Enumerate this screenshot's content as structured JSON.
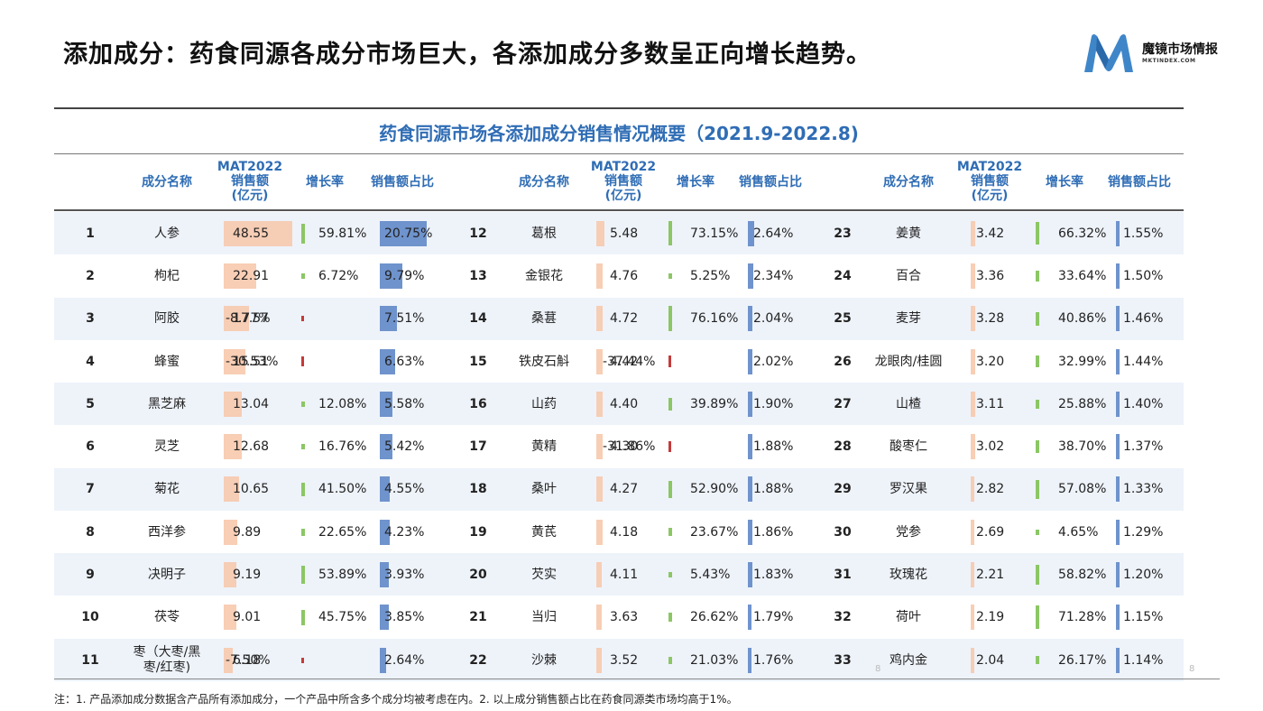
{
  "page_title": "添加成分：药食同源各成分市场巨大，各添加成分多数呈正向增长趋势。",
  "logo": {
    "brand": "魔镜市场情报",
    "sub": "MKTINDEX.COM"
  },
  "table_title": "药食同源市场各添加成分销售情况概要（2021.9-2022.8)",
  "headers": {
    "name": "成分名称",
    "sales_line1": "MAT2022",
    "sales_line2": "销售额",
    "sales_line3": "(亿元)",
    "growth": "增长率",
    "share": "销售额占比"
  },
  "colors": {
    "sales_bar": "#f7c6a8",
    "growth_pos": "#8cc665",
    "growth_neg": "#c43a3a",
    "share_bar": "#6f93cc",
    "header_text": "#2f6db5"
  },
  "groups": [
    {
      "rows": [
        {
          "rank": "1",
          "name": "人参",
          "sales": "48.55",
          "growth": "59.81%",
          "share": "20.75%",
          "sales_num": 48.55,
          "growth_num": 59.81,
          "share_num": 20.75
        },
        {
          "rank": "2",
          "name": "枸杞",
          "sales": "22.91",
          "growth": "6.72%",
          "share": "9.79%",
          "sales_num": 22.91,
          "growth_num": 6.72,
          "share_num": 9.79
        },
        {
          "rank": "3",
          "name": "阿胶",
          "sales": "17.57",
          "growth": "-8.77%",
          "share": "7.51%",
          "sales_num": 17.57,
          "growth_num": -8.77,
          "share_num": 7.51
        },
        {
          "rank": "4",
          "name": "蜂蜜",
          "sales": "15.51",
          "growth": "-30.53%",
          "share": "6.63%",
          "sales_num": 15.51,
          "growth_num": -30.53,
          "share_num": 6.63
        },
        {
          "rank": "5",
          "name": "黑芝麻",
          "sales": "13.04",
          "growth": "12.08%",
          "share": "5.58%",
          "sales_num": 13.04,
          "growth_num": 12.08,
          "share_num": 5.58
        },
        {
          "rank": "6",
          "name": "灵芝",
          "sales": "12.68",
          "growth": "16.76%",
          "share": "5.42%",
          "sales_num": 12.68,
          "growth_num": 16.76,
          "share_num": 5.42
        },
        {
          "rank": "7",
          "name": "菊花",
          "sales": "10.65",
          "growth": "41.50%",
          "share": "4.55%",
          "sales_num": 10.65,
          "growth_num": 41.5,
          "share_num": 4.55
        },
        {
          "rank": "8",
          "name": "西洋参",
          "sales": "9.89",
          "growth": "22.65%",
          "share": "4.23%",
          "sales_num": 9.89,
          "growth_num": 22.65,
          "share_num": 4.23
        },
        {
          "rank": "9",
          "name": "决明子",
          "sales": "9.19",
          "growth": "53.89%",
          "share": "3.93%",
          "sales_num": 9.19,
          "growth_num": 53.89,
          "share_num": 3.93
        },
        {
          "rank": "10",
          "name": "茯苓",
          "sales": "9.01",
          "growth": "45.75%",
          "share": "3.85%",
          "sales_num": 9.01,
          "growth_num": 45.75,
          "share_num": 3.85
        },
        {
          "rank": "11",
          "name": "枣（大枣/黑枣/红枣)",
          "name_line1": "枣（大枣/黑",
          "name_line2": "枣/红枣)",
          "sales": "6.18",
          "growth": "-7.50%",
          "share": "2.64%",
          "sales_num": 6.18,
          "growth_num": -7.5,
          "share_num": 2.64
        }
      ]
    },
    {
      "rows": [
        {
          "rank": "12",
          "name": "葛根",
          "sales": "5.48",
          "growth": "73.15%",
          "share": "2.64%",
          "sales_num": 5.48,
          "growth_num": 73.15,
          "share_num": 2.64
        },
        {
          "rank": "13",
          "name": "金银花",
          "sales": "4.76",
          "growth": "5.25%",
          "share": "2.34%",
          "sales_num": 4.76,
          "growth_num": 5.25,
          "share_num": 2.34
        },
        {
          "rank": "14",
          "name": "桑葚",
          "sales": "4.72",
          "growth": "76.16%",
          "share": "2.04%",
          "sales_num": 4.72,
          "growth_num": 76.16,
          "share_num": 2.04
        },
        {
          "rank": "15",
          "name": "铁皮石斛",
          "sales": "4.42",
          "growth": "-37.44%",
          "share": "2.02%",
          "sales_num": 4.42,
          "growth_num": -37.44,
          "share_num": 2.02
        },
        {
          "rank": "16",
          "name": "山药",
          "sales": "4.40",
          "growth": "39.89%",
          "share": "1.90%",
          "sales_num": 4.4,
          "growth_num": 39.89,
          "share_num": 1.9
        },
        {
          "rank": "17",
          "name": "黄精",
          "sales": "4.30",
          "growth": "-31.86%",
          "share": "1.88%",
          "sales_num": 4.3,
          "growth_num": -31.86,
          "share_num": 1.88
        },
        {
          "rank": "18",
          "name": "桑叶",
          "sales": "4.27",
          "growth": "52.90%",
          "share": "1.88%",
          "sales_num": 4.27,
          "growth_num": 52.9,
          "share_num": 1.88
        },
        {
          "rank": "19",
          "name": "黄芪",
          "sales": "4.18",
          "growth": "23.67%",
          "share": "1.86%",
          "sales_num": 4.18,
          "growth_num": 23.67,
          "share_num": 1.86
        },
        {
          "rank": "20",
          "name": "芡实",
          "sales": "4.11",
          "growth": "5.43%",
          "share": "1.83%",
          "sales_num": 4.11,
          "growth_num": 5.43,
          "share_num": 1.83
        },
        {
          "rank": "21",
          "name": "当归",
          "sales": "3.63",
          "growth": "26.62%",
          "share": "1.79%",
          "sales_num": 3.63,
          "growth_num": 26.62,
          "share_num": 1.79
        },
        {
          "rank": "22",
          "name": "沙棘",
          "sales": "3.52",
          "growth": "21.03%",
          "share": "1.76%",
          "sales_num": 3.52,
          "growth_num": 21.03,
          "share_num": 1.76
        }
      ]
    },
    {
      "rows": [
        {
          "rank": "23",
          "name": "姜黄",
          "sales": "3.42",
          "growth": "66.32%",
          "share": "1.55%",
          "sales_num": 3.42,
          "growth_num": 66.32,
          "share_num": 1.55
        },
        {
          "rank": "24",
          "name": "百合",
          "sales": "3.36",
          "growth": "33.64%",
          "share": "1.50%",
          "sales_num": 3.36,
          "growth_num": 33.64,
          "share_num": 1.5
        },
        {
          "rank": "25",
          "name": "麦芽",
          "sales": "3.28",
          "growth": "40.86%",
          "share": "1.46%",
          "sales_num": 3.28,
          "growth_num": 40.86,
          "share_num": 1.46
        },
        {
          "rank": "26",
          "name": "龙眼肉/桂圆",
          "sales": "3.20",
          "growth": "32.99%",
          "share": "1.44%",
          "sales_num": 3.2,
          "growth_num": 32.99,
          "share_num": 1.44
        },
        {
          "rank": "27",
          "name": "山楂",
          "sales": "3.11",
          "growth": "25.88%",
          "share": "1.40%",
          "sales_num": 3.11,
          "growth_num": 25.88,
          "share_num": 1.4
        },
        {
          "rank": "28",
          "name": "酸枣仁",
          "sales": "3.02",
          "growth": "38.70%",
          "share": "1.37%",
          "sales_num": 3.02,
          "growth_num": 38.7,
          "share_num": 1.37
        },
        {
          "rank": "29",
          "name": "罗汉果",
          "sales": "2.82",
          "growth": "57.08%",
          "share": "1.33%",
          "sales_num": 2.82,
          "growth_num": 57.08,
          "share_num": 1.33
        },
        {
          "rank": "30",
          "name": "党参",
          "sales": "2.69",
          "growth": "4.65%",
          "share": "1.29%",
          "sales_num": 2.69,
          "growth_num": 4.65,
          "share_num": 1.29
        },
        {
          "rank": "31",
          "name": "玫瑰花",
          "sales": "2.21",
          "growth": "58.82%",
          "share": "1.20%",
          "sales_num": 2.21,
          "growth_num": 58.82,
          "share_num": 1.2
        },
        {
          "rank": "32",
          "name": "荷叶",
          "sales": "2.19",
          "growth": "71.28%",
          "share": "1.15%",
          "sales_num": 2.19,
          "growth_num": 71.28,
          "share_num": 1.15
        },
        {
          "rank": "33",
          "name": "鸡内金",
          "sales": "2.04",
          "growth": "26.17%",
          "share": "1.14%",
          "sales_num": 2.04,
          "growth_num": 26.17,
          "share_num": 1.14
        }
      ]
    }
  ],
  "footnote": "注：1. 产品添加成分数据含产品所有添加成分，一个产品中所含多个成分均被考虑在内。2. 以上成分销售额占比在药食同源类市场均高于1%。",
  "page_numbers": [
    "8",
    "8"
  ]
}
